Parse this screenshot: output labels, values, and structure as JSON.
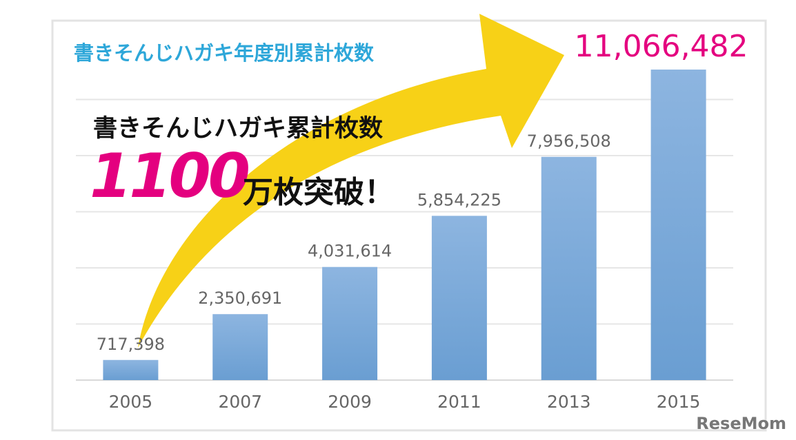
{
  "chart_data": {
    "type": "bar",
    "title": "書きそんじハガキ年度別累計枚数",
    "headline": "書きそんじハガキ累計枚数",
    "highlight_number": "1100",
    "highlight_suffix": "万枚突破！",
    "watermark": "ReseMom",
    "categories": [
      "2005",
      "2007",
      "2009",
      "2011",
      "2013",
      "2015"
    ],
    "values": [
      717398,
      2350691,
      4031614,
      5854225,
      7956508,
      11066482
    ],
    "value_labels": [
      "717,398",
      "2,350,691",
      "4,031,614",
      "5,854,225",
      "7,956,508",
      "11,066,482"
    ],
    "color": "#7aa9d9",
    "ylim": [
      0,
      12000000
    ],
    "yticks": [
      0,
      2000000,
      4000000,
      6000000,
      8000000,
      10000000
    ],
    "grid": true
  }
}
